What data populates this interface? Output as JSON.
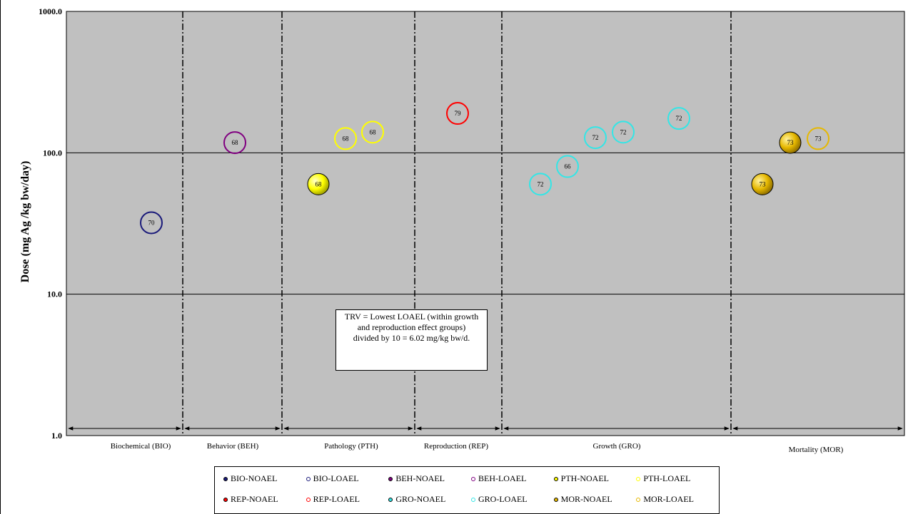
{
  "chart_data": {
    "type": "scatter",
    "title": "",
    "xlabel": "",
    "ylabel": "Dose (mg Ag /kg bw/day)",
    "y_scale": "log",
    "ylim": [
      1,
      1000
    ],
    "y_ticks": [
      "1000.0",
      "100.0",
      "10.0",
      "1.0"
    ],
    "y_tick_values": [
      1000,
      100,
      10,
      1
    ],
    "grid": "horizontal",
    "legend_placement": "bottom",
    "groups": [
      {
        "label": "Biochemical (BIO)",
        "code": "BIO"
      },
      {
        "label": "Behavior (BEH)",
        "code": "BEH"
      },
      {
        "label": "Pathology (PTH)",
        "code": "PTH"
      },
      {
        "label": "Reproduction (REP)",
        "code": "REP"
      },
      {
        "label": "Growth (GRO)",
        "code": "GRO"
      },
      {
        "label": "Mortality (MOR)",
        "code": "MOR"
      }
    ],
    "colors": {
      "BIO": "#1a1a7a",
      "BEH": "#800080",
      "PTH": "#ffff00",
      "REP": "#ff0000",
      "GRO": "#33e6e6",
      "MOR": "#e6b800"
    },
    "points": [
      {
        "group": "BIO",
        "type": "LOAEL",
        "value": 32,
        "label": "70"
      },
      {
        "group": "BEH",
        "type": "LOAEL",
        "value": 118,
        "label": "68"
      },
      {
        "group": "PTH",
        "type": "NOAEL",
        "value": 60,
        "label": "68"
      },
      {
        "group": "PTH",
        "type": "LOAEL",
        "value": 126,
        "label": "68"
      },
      {
        "group": "PTH",
        "type": "LOAEL",
        "value": 140,
        "label": "68"
      },
      {
        "group": "REP",
        "type": "LOAEL",
        "value": 190,
        "label": "79"
      },
      {
        "group": "GRO",
        "type": "LOAEL",
        "value": 60,
        "label": "72"
      },
      {
        "group": "GRO",
        "type": "LOAEL",
        "value": 80,
        "label": "66"
      },
      {
        "group": "GRO",
        "type": "LOAEL",
        "value": 128,
        "label": "72"
      },
      {
        "group": "GRO",
        "type": "LOAEL",
        "value": 140,
        "label": "72"
      },
      {
        "group": "GRO",
        "type": "LOAEL",
        "value": 175,
        "label": "72"
      },
      {
        "group": "MOR",
        "type": "NOAEL",
        "value": 60,
        "label": "73"
      },
      {
        "group": "MOR",
        "type": "NOAEL",
        "value": 118,
        "label": "73"
      },
      {
        "group": "MOR",
        "type": "LOAEL",
        "value": 126,
        "label": "73"
      }
    ],
    "annotation": [
      "TRV = Lowest LOAEL (within growth",
      "and reproduction effect groups)",
      "divided by 10 = 6.02 mg/kg bw/d."
    ],
    "legend": [
      {
        "label": "BIO-NOAEL",
        "group": "BIO",
        "filled": true
      },
      {
        "label": "BIO-LOAEL",
        "group": "BIO",
        "filled": false
      },
      {
        "label": "BEH-NOAEL",
        "group": "BEH",
        "filled": true
      },
      {
        "label": "BEH-LOAEL",
        "group": "BEH",
        "filled": false
      },
      {
        "label": "PTH-NOAEL",
        "group": "PTH",
        "filled": true
      },
      {
        "label": "PTH-LOAEL",
        "group": "PTH",
        "filled": false
      },
      {
        "label": "REP-NOAEL",
        "group": "REP",
        "filled": true
      },
      {
        "label": "REP-LOAEL",
        "group": "REP",
        "filled": false
      },
      {
        "label": "GRO-NOAEL",
        "group": "GRO",
        "filled": true
      },
      {
        "label": "GRO-LOAEL",
        "group": "GRO",
        "filled": false
      },
      {
        "label": "MOR-NOAEL",
        "group": "MOR",
        "filled": true
      },
      {
        "label": "MOR-LOAEL",
        "group": "MOR",
        "filled": false
      }
    ]
  }
}
